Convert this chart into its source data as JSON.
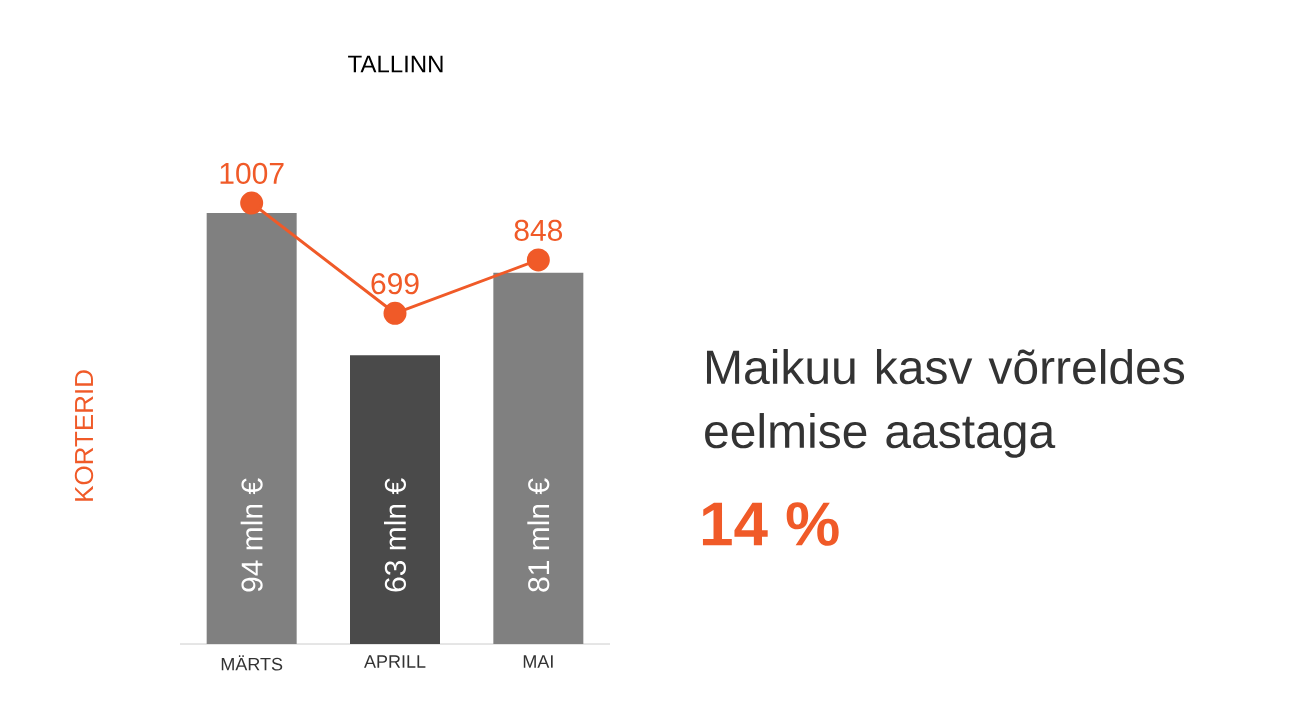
{
  "chart_data": {
    "type": "bar",
    "title": "TALLINN",
    "ylabel": "KORTERID",
    "categories": [
      "MÄRTS",
      "APRILL",
      "MAI"
    ],
    "series": [
      {
        "colors": [
          "#808080",
          "#4a4a4a",
          "#808080"
        ],
        "values": [
          94,
          63,
          81
        ],
        "value_labels": [
          "94 mln €",
          "63 mln €",
          "81 mln €"
        ]
      },
      {
        "type": "line",
        "axis": "y2",
        "color": "#f05a28",
        "marker": "circle",
        "data_labels": true,
        "values": [
          1007,
          699,
          848
        ]
      }
    ],
    "annotations": [
      "Maikuu kasv võrreldes eelmise aastaga",
      "14 %"
    ]
  }
}
